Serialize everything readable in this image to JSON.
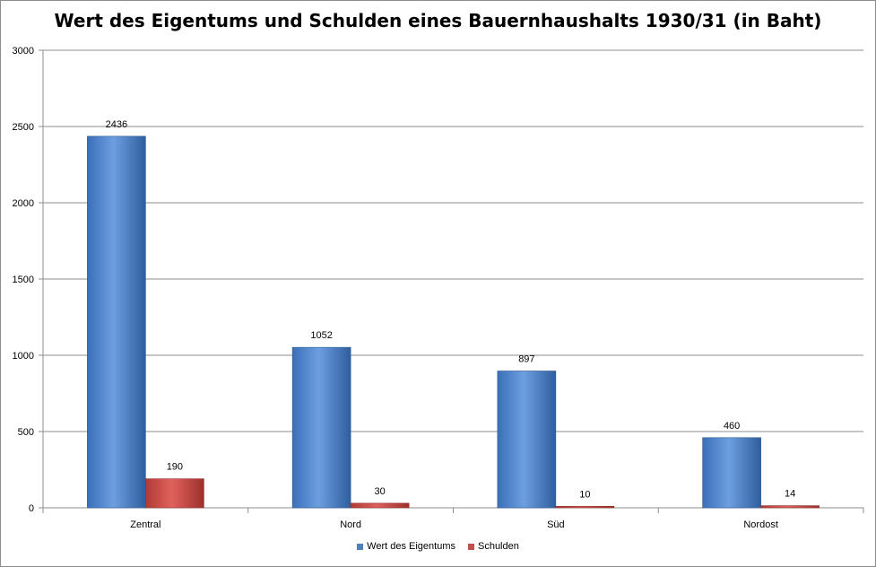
{
  "chart_data": {
    "type": "bar",
    "title": "Wert des Eigentums und Schulden eines Bauernhaushalts 1930/31 (in Baht)",
    "xlabel": "",
    "ylabel": "",
    "categories": [
      "Zentral",
      "Nord",
      "Süd",
      "Nordost"
    ],
    "series": [
      {
        "name": "Wert des Eigentums",
        "values": [
          2436,
          1052,
          897,
          460
        ],
        "color": "#4f81bd"
      },
      {
        "name": "Schulden",
        "values": [
          190,
          30,
          10,
          14
        ],
        "color": "#c0504d"
      }
    ],
    "ylim": [
      0,
      3000
    ],
    "yticks": [
      0,
      500,
      1000,
      1500,
      2000,
      2500,
      3000
    ],
    "grid": true,
    "legend_position": "bottom"
  }
}
